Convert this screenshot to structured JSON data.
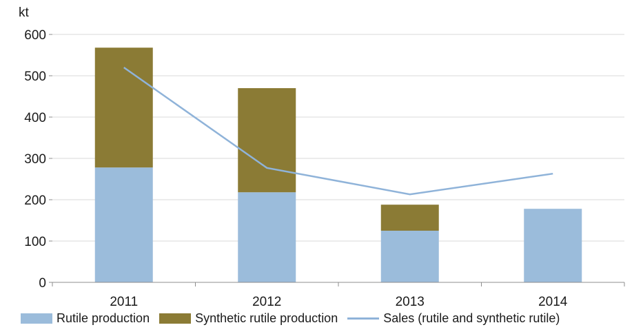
{
  "chart_data": {
    "type": "bar",
    "stacked": true,
    "unit_label": "kt",
    "categories": [
      "2011",
      "2012",
      "2013",
      "2014"
    ],
    "series": [
      {
        "name": "Rutile production",
        "kind": "bar",
        "color": "#9bbcdb",
        "values": [
          278,
          218,
          125,
          178
        ]
      },
      {
        "name": "Synthetic rutile production",
        "kind": "bar",
        "color": "#8b7b35",
        "values": [
          290,
          252,
          63,
          0
        ]
      },
      {
        "name": "Sales (rutile and synthetic rutile)",
        "kind": "line",
        "color": "#8fb3d9",
        "values": [
          520,
          277,
          213,
          263
        ]
      }
    ],
    "yticks": [
      "0",
      "100",
      "200",
      "300",
      "400",
      "500",
      "600"
    ],
    "ylim": [
      0,
      600
    ],
    "grid": true,
    "legend_position": "bottom"
  }
}
